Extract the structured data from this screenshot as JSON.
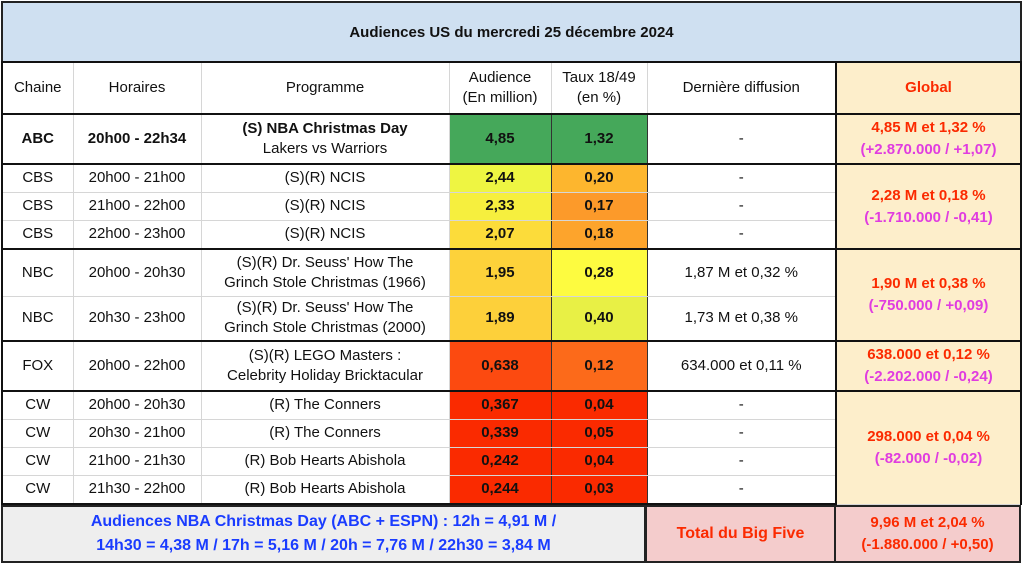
{
  "title": "Audiences US du mercredi 25 décembre 2024",
  "headers": {
    "chaine": "Chaine",
    "horaires": "Horaires",
    "programme": "Programme",
    "audience1": "Audience",
    "audience2": "(En million)",
    "taux1": "Taux 18/49",
    "taux2": "(en %)",
    "derniere": "Dernière diffusion",
    "global": "Global"
  },
  "rows": [
    {
      "chaine": "ABC",
      "horaires": "20h00 - 22h34",
      "prog1": "(S) NBA Christmas Day",
      "prog2": "Lakers vs Warriors",
      "audience": "4,85",
      "taux": "1,32",
      "derniere": "-",
      "aud_color": "#45a85a",
      "taux_color": "#45a85a"
    },
    {
      "chaine": "CBS",
      "horaires": "20h00 - 21h00",
      "prog1": "(S)(R) NCIS",
      "audience": "2,44",
      "taux": "0,20",
      "derniere": "-",
      "aud_color": "#eef542",
      "taux_color": "#fdb62e"
    },
    {
      "chaine": "CBS",
      "horaires": "21h00 - 22h00",
      "prog1": "(S)(R) NCIS",
      "audience": "2,33",
      "taux": "0,17",
      "derniere": "-",
      "aud_color": "#f6ef3e",
      "taux_color": "#fc9a2a"
    },
    {
      "chaine": "CBS",
      "horaires": "22h00 - 23h00",
      "prog1": "(S)(R) NCIS",
      "audience": "2,07",
      "taux": "0,18",
      "derniere": "-",
      "aud_color": "#fcdc3a",
      "taux_color": "#fda42c"
    },
    {
      "chaine": "NBC",
      "horaires": "20h00 - 20h30",
      "prog1": "(S)(R) Dr. Seuss' How The",
      "prog2": "Grinch Stole Christmas (1966)",
      "audience": "1,95",
      "taux": "0,28",
      "derniere": "1,87 M et 0,32 %",
      "aud_color": "#fdd23a",
      "taux_color": "#fdfb40"
    },
    {
      "chaine": "NBC",
      "horaires": "20h30 - 23h00",
      "prog1": "(S)(R) Dr. Seuss' How The",
      "prog2": "Grinch Stole Christmas (2000)",
      "audience": "1,89",
      "taux": "0,40",
      "derniere": "1,73 M et 0,38 %",
      "aud_color": "#fdd03a",
      "taux_color": "#e8f045"
    },
    {
      "chaine": "FOX",
      "horaires": "20h00 - 22h00",
      "prog1": "(S)(R) LEGO Masters :",
      "prog2": "Celebrity Holiday Bricktacular",
      "audience": "0,638",
      "taux": "0,12",
      "derniere": "634.000 et 0,11 %",
      "aud_color": "#fc4a10",
      "taux_color": "#fc6a1a"
    },
    {
      "chaine": "CW",
      "horaires": "20h00 - 20h30",
      "prog1": "(R) The Conners",
      "audience": "0,367",
      "taux": "0,04",
      "derniere": "-",
      "aud_color": "#fa2a00",
      "taux_color": "#fa2a00"
    },
    {
      "chaine": "CW",
      "horaires": "20h30 - 21h00",
      "prog1": "(R) The Conners",
      "audience": "0,339",
      "taux": "0,05",
      "derniere": "-",
      "aud_color": "#fa2a00",
      "taux_color": "#fa2a00"
    },
    {
      "chaine": "CW",
      "horaires": "21h00 - 21h30",
      "prog1": "(R) Bob Hearts Abishola",
      "audience": "0,242",
      "taux": "0,04",
      "derniere": "-",
      "aud_color": "#fa2a00",
      "taux_color": "#fa2a00"
    },
    {
      "chaine": "CW",
      "horaires": "21h30 - 22h00",
      "prog1": "(R) Bob Hearts Abishola",
      "audience": "0,244",
      "taux": "0,03",
      "derniere": "-",
      "aud_color": "#fa2a00",
      "taux_color": "#fa2a00"
    }
  ],
  "globals": [
    {
      "line1": "4,85 M et 1,32 %",
      "line2": "(+2.870.000 / +1,07)"
    },
    {
      "line1": "2,28 M et 0,18 %",
      "line2": "(-1.710.000 / -0,41)"
    },
    {
      "line1": "1,90 M et 0,38 %",
      "line2": "(-750.000 / +0,09)"
    },
    {
      "line1": "638.000 et 0,12 %",
      "line2": "(-2.202.000 / -0,24)"
    },
    {
      "line1": "298.000 et 0,04 %",
      "line2": "(-82.000 / -0,02)"
    }
  ],
  "footer": {
    "nba1": "Audiences NBA Christmas Day (ABC + ESPN) : 12h = 4,91 M /",
    "nba2": "14h30 = 4,38 M / 17h = 5,16 M / 20h = 7,76 M / 22h30 = 3,84 M",
    "total_label": "Total du Big Five",
    "total1": "9,96 M et 2,04 %",
    "total2": "(-1.880.000 / +0,50)"
  }
}
